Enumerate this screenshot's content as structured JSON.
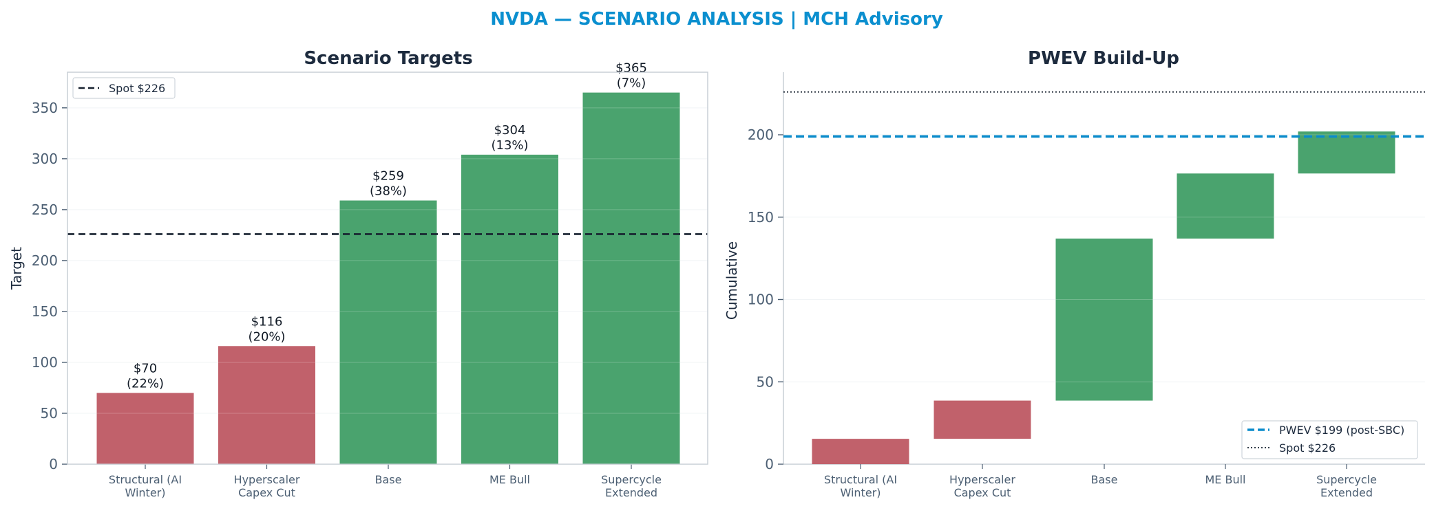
{
  "suptitle": "NVDA — SCENARIO ANALYSIS | MCH Advisory",
  "colors": {
    "title": "#0b8fcf",
    "heading": "#1d2b3e",
    "tick": "#4c5f73",
    "neg": "#c1616b",
    "pos": "#4aa36e",
    "spot": "#16202e",
    "pwev": "#0a8bcb",
    "axis": "#c9cfd6",
    "grid": "#eef1f4"
  },
  "chart_data": [
    {
      "type": "bar",
      "title": "Scenario Targets",
      "xlabel": "",
      "ylabel": "Target",
      "categories": [
        "Structural (AI\nWinter)",
        "Hyperscaler\nCapex Cut",
        "Base",
        "ME Bull",
        "Supercycle\nExtended"
      ],
      "values": [
        70,
        116,
        259,
        304,
        365
      ],
      "probabilities": [
        "22%",
        "20%",
        "38%",
        "13%",
        "7%"
      ],
      "data_labels": [
        "$70\n(22%)",
        "$116\n(20%)",
        "$259\n(38%)",
        "$304\n(13%)",
        "$365\n(7%)"
      ],
      "bar_colors": [
        "neg",
        "neg",
        "pos",
        "pos",
        "pos"
      ],
      "reference_lines": [
        {
          "name": "Spot $226",
          "value": 226,
          "style": "dashed"
        }
      ],
      "ylim": [
        0,
        385
      ],
      "yticks": [
        0,
        50,
        100,
        150,
        200,
        250,
        300,
        350
      ],
      "legend": {
        "position": "top-left",
        "entries": [
          "Spot $226"
        ]
      },
      "grid": "horizontal"
    },
    {
      "type": "waterfall",
      "title": "PWEV Build-Up",
      "xlabel": "",
      "ylabel": "Cumulative",
      "categories": [
        "Structural (AI\nWinter)",
        "Hyperscaler\nCapex Cut",
        "Base",
        "ME Bull",
        "Supercycle\nExtended"
      ],
      "floating_bars": [
        {
          "start": 0,
          "end": 15.4
        },
        {
          "start": 15.4,
          "end": 38.6
        },
        {
          "start": 38.6,
          "end": 137.0
        },
        {
          "start": 137.0,
          "end": 176.5
        },
        {
          "start": 176.5,
          "end": 202.0
        }
      ],
      "bar_colors": [
        "neg",
        "neg",
        "pos",
        "pos",
        "pos"
      ],
      "reference_lines": [
        {
          "name": "PWEV $199 (post-SBC)",
          "value": 199,
          "style": "dashed",
          "color": "pwev"
        },
        {
          "name": "Spot $226",
          "value": 226,
          "style": "dotted",
          "color": "spot"
        }
      ],
      "ylim": [
        0,
        238
      ],
      "yticks": [
        0,
        50,
        100,
        150,
        200
      ],
      "legend": {
        "position": "bottom-right",
        "entries": [
          "PWEV $199 (post-SBC)",
          "Spot $226"
        ]
      },
      "grid": "horizontal"
    }
  ]
}
